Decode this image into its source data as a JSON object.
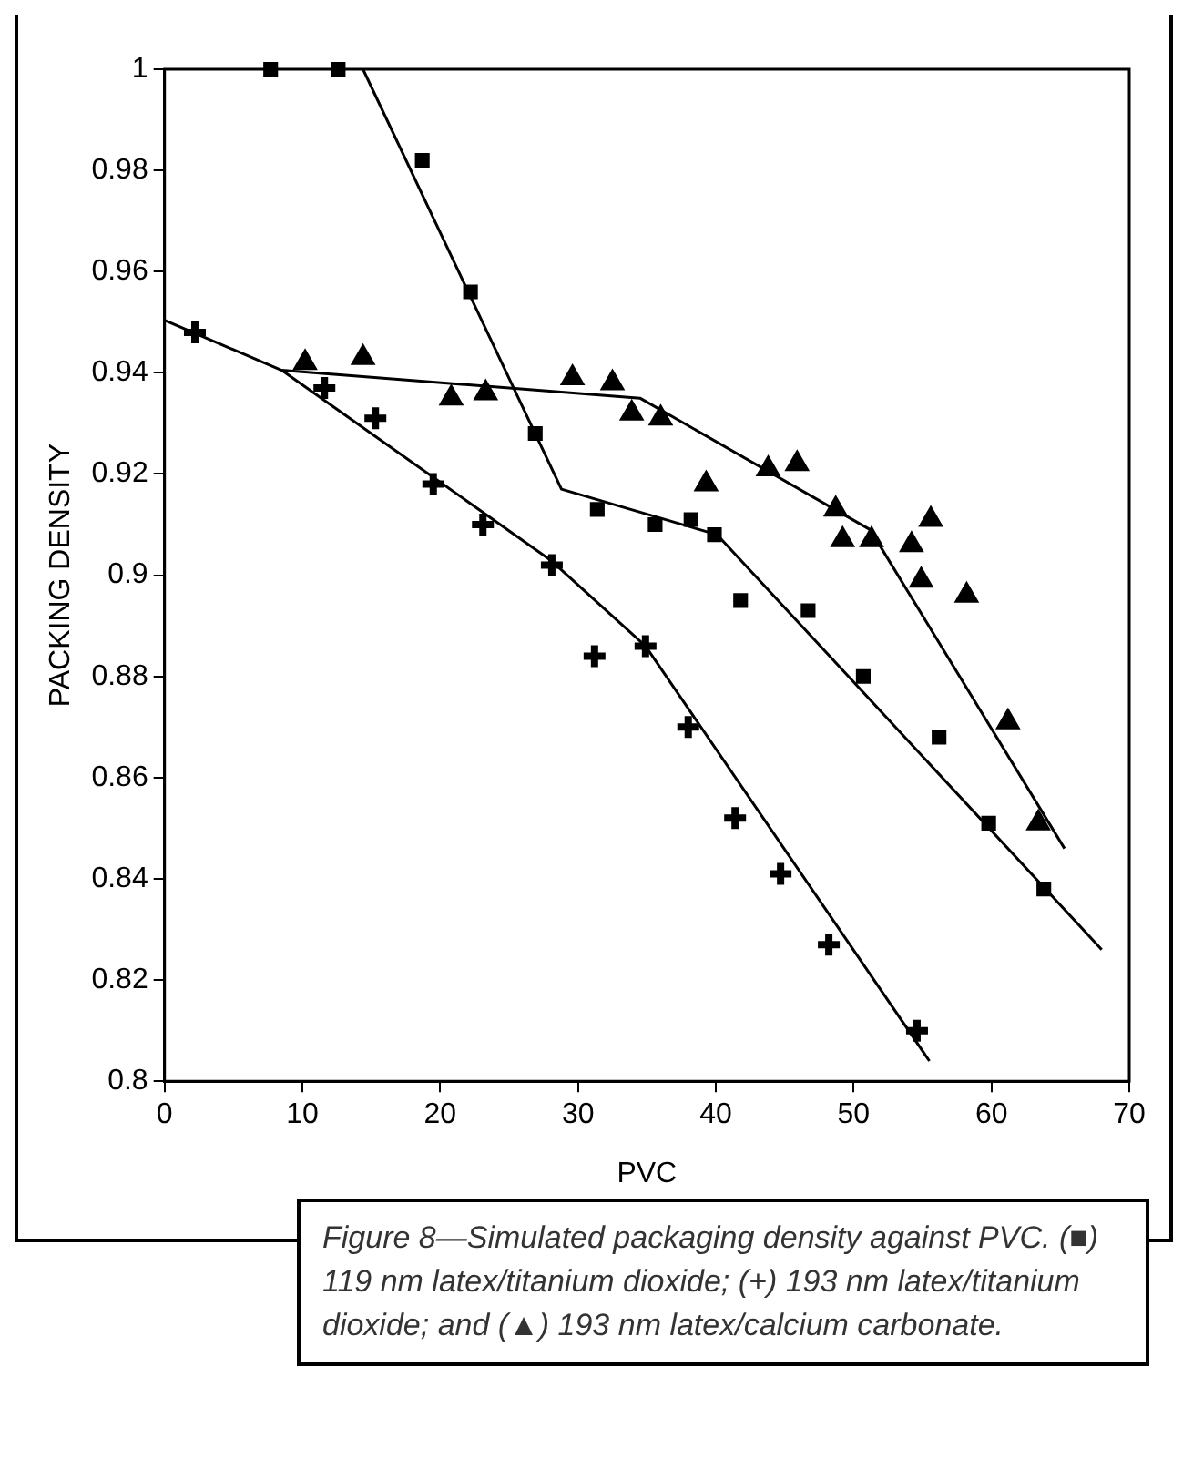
{
  "chart_data": {
    "type": "scatter",
    "xlabel": "PVC",
    "ylabel": "PACKING DENSITY",
    "xlim": [
      0,
      70
    ],
    "ylim": [
      0.8,
      1
    ],
    "xticks": [
      0,
      10,
      20,
      30,
      40,
      50,
      60,
      70
    ],
    "yticks": [
      0.8,
      0.82,
      0.84,
      0.86,
      0.88,
      0.9,
      0.92,
      0.94,
      0.96,
      0.98,
      1
    ],
    "annotations": [
      "Figure 8—Simulated packaging density against PVC. (■) 119 nm latex/titanium dioxide; (+) 193 nm latex/titanium dioxide; and (▲) 193 nm latex/calcium carbonate."
    ],
    "series": [
      {
        "marker": "square",
        "color": "#000000",
        "x": [
          7.7,
          12.6,
          18.7,
          22.2,
          26.9,
          31.4,
          35.6,
          38.2,
          39.9,
          41.8,
          46.7,
          50.7,
          56.2,
          59.8,
          63.8
        ],
        "values": [
          1.0,
          1.0,
          0.982,
          0.956,
          0.928,
          0.913,
          0.91,
          0.911,
          0.908,
          0.895,
          0.893,
          0.88,
          0.868,
          0.851,
          0.838
        ]
      },
      {
        "marker": "cross",
        "color": "#000000",
        "x": [
          2.2,
          11.6,
          15.3,
          19.5,
          23.1,
          28.1,
          31.2,
          34.9,
          38.0,
          41.4,
          44.7,
          48.2,
          54.6
        ],
        "values": [
          0.948,
          0.937,
          0.931,
          0.918,
          0.91,
          0.902,
          0.884,
          0.886,
          0.87,
          0.852,
          0.841,
          0.827,
          0.81
        ]
      },
      {
        "marker": "triangle",
        "color": "#000000",
        "x": [
          10.2,
          14.4,
          20.8,
          23.3,
          29.6,
          32.5,
          33.9,
          36.0,
          39.3,
          43.8,
          45.9,
          48.7,
          49.2,
          51.3,
          54.2,
          55.6,
          54.9,
          58.2,
          61.2,
          63.4
        ],
        "values": [
          0.942,
          0.943,
          0.935,
          0.936,
          0.939,
          0.938,
          0.932,
          0.931,
          0.918,
          0.921,
          0.922,
          0.913,
          0.907,
          0.907,
          0.906,
          0.911,
          0.899,
          0.896,
          0.871,
          0.851
        ]
      },
      {
        "type": "line",
        "marker": "none",
        "color": "#000000",
        "x": [
          14.4,
          28.8,
          40.1,
          68.0
        ],
        "values": [
          1.0,
          0.917,
          0.908,
          0.826
        ]
      },
      {
        "type": "line",
        "marker": "none",
        "color": "#000000",
        "x": [
          0,
          8.5,
          28.0,
          34.9,
          55.5
        ],
        "values": [
          0.9504,
          0.9405,
          0.903,
          0.886,
          0.804
        ]
      },
      {
        "type": "line",
        "marker": "none",
        "color": "#000000",
        "x": [
          8.5,
          34.5,
          51.2,
          65.3
        ],
        "values": [
          0.9405,
          0.935,
          0.909,
          0.846
        ]
      }
    ]
  }
}
